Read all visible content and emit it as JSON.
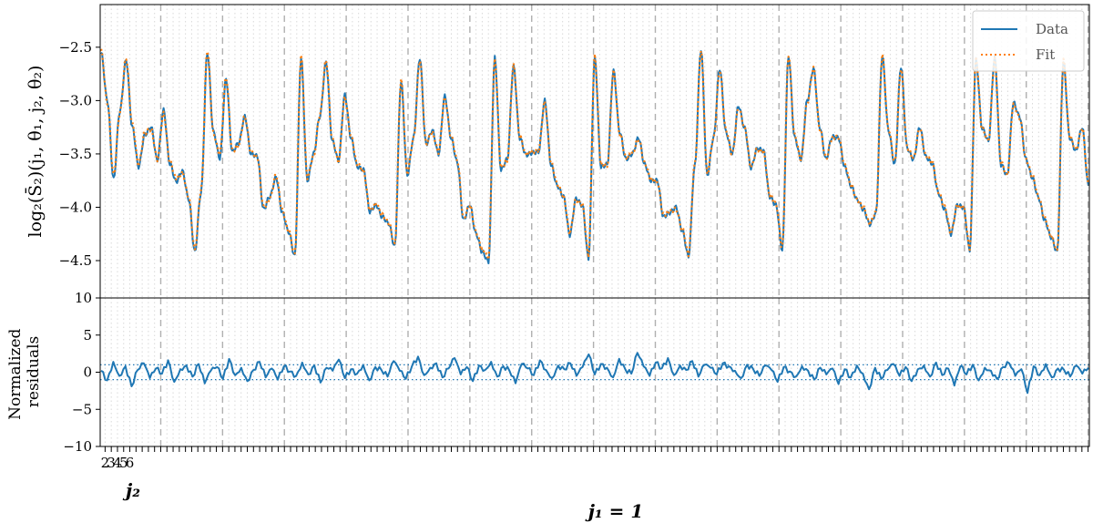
{
  "chart_data": [
    {
      "type": "line",
      "panel": "top",
      "ylabel": "log₂(S̄₂)(j₁, θ₁, j₂, θ₂)",
      "ylim": [
        -4.85,
        -2.1
      ],
      "yticks": [
        -2.5,
        -3.0,
        -3.5,
        -4.0,
        -4.5
      ],
      "ytick_labels": [
        "−2.5",
        "−3.0",
        "−3.5",
        "−4.0",
        "−4.5"
      ],
      "grid": "vertical dotted minor lines, dashed major lines",
      "legend_position": "top-right",
      "series": [
        {
          "name": "Data",
          "color": "#1f77b4",
          "style": "solid",
          "x_range": [
            0,
            159
          ],
          "samples": [
            -2.55,
            -3.0,
            -3.74,
            -3.1,
            -2.62,
            -3.25,
            -3.62,
            -3.32,
            -3.25,
            -3.56,
            -3.09,
            -3.59,
            -3.76,
            -3.66,
            -3.92,
            -4.42,
            -3.86,
            -2.55,
            -3.3,
            -3.54,
            -2.8,
            -3.48,
            -3.4,
            -3.15,
            -3.5,
            -3.52,
            -4.02,
            -3.9,
            -3.72,
            -4.05,
            -4.23,
            -4.46,
            -2.6,
            -3.75,
            -3.5,
            -3.15,
            -2.64,
            -3.38,
            -3.56,
            -2.95,
            -3.35,
            -3.62,
            -3.65,
            -4.04,
            -3.98,
            -4.09,
            -4.15,
            -4.37,
            -2.82,
            -3.7,
            -3.35,
            -2.6,
            -3.41,
            -3.28,
            -3.5,
            -2.96,
            -3.35,
            -3.58,
            -4.12,
            -3.98,
            -4.25,
            -4.42,
            -4.51,
            -2.6,
            -3.65,
            -3.55,
            -2.68,
            -3.35,
            -3.51,
            -3.49,
            -3.48,
            -3.0,
            -3.6,
            -3.8,
            -3.9,
            -4.26,
            -3.92,
            -3.98,
            -4.48,
            -2.6,
            -3.62,
            -3.6,
            -2.72,
            -3.3,
            -3.55,
            -3.5,
            -3.35,
            -3.6,
            -3.75,
            -3.75,
            -4.09,
            -4.05,
            -4.0,
            -4.22,
            -4.46,
            -3.62,
            -2.52,
            -3.7,
            -3.35,
            -2.7,
            -3.3,
            -3.5,
            -3.05,
            -3.26,
            -3.63,
            -3.45,
            -3.47,
            -3.9,
            -3.98,
            -4.4,
            -2.58,
            -3.35,
            -3.55,
            -3.0,
            -2.7,
            -3.25,
            -3.55,
            -3.34,
            -3.35,
            -3.62,
            -3.8,
            -3.93,
            -4.02,
            -4.16,
            -4.06,
            -2.58,
            -3.28,
            -3.6,
            -2.68,
            -3.45,
            -3.55,
            -3.25,
            -3.53,
            -3.59,
            -3.87,
            -4.02,
            -4.25,
            -3.98,
            -4.0,
            -4.4,
            -2.62,
            -3.26,
            -3.38,
            -2.6,
            -3.6,
            -3.7,
            -3.02,
            -3.15,
            -3.55,
            -3.72,
            -3.91,
            -4.12,
            -4.28,
            -4.42,
            -2.64,
            -3.35,
            -3.47,
            -3.25,
            -3.8
          ]
        },
        {
          "name": "Fit",
          "color": "#ff7f0e",
          "style": "dotted",
          "x_range": [
            0,
            159
          ],
          "samples": [
            -2.53,
            -3.02,
            -3.7,
            -3.12,
            -2.6,
            -3.22,
            -3.6,
            -3.3,
            -3.27,
            -3.55,
            -3.12,
            -3.57,
            -3.73,
            -3.68,
            -3.9,
            -4.4,
            -3.84,
            -2.52,
            -3.32,
            -3.5,
            -2.78,
            -3.47,
            -3.42,
            -3.15,
            -3.48,
            -3.53,
            -4.0,
            -3.92,
            -3.7,
            -4.03,
            -4.22,
            -4.44,
            -2.58,
            -3.72,
            -3.52,
            -3.14,
            -2.62,
            -3.36,
            -3.57,
            -2.97,
            -3.33,
            -3.6,
            -3.66,
            -4.02,
            -3.97,
            -4.07,
            -4.14,
            -4.35,
            -2.8,
            -3.68,
            -3.36,
            -2.62,
            -3.4,
            -3.3,
            -3.48,
            -2.98,
            -3.33,
            -3.56,
            -4.1,
            -3.98,
            -4.23,
            -4.4,
            -4.47,
            -2.62,
            -3.63,
            -3.56,
            -2.67,
            -3.34,
            -3.5,
            -3.48,
            -3.47,
            -3.02,
            -3.58,
            -3.78,
            -3.9,
            -4.24,
            -3.93,
            -3.97,
            -4.45,
            -2.58,
            -3.6,
            -3.61,
            -2.73,
            -3.31,
            -3.54,
            -3.49,
            -3.36,
            -3.59,
            -3.74,
            -3.76,
            -4.07,
            -4.04,
            -4.02,
            -4.2,
            -4.44,
            -3.6,
            -2.53,
            -3.68,
            -3.36,
            -2.72,
            -3.28,
            -3.5,
            -3.07,
            -3.25,
            -3.62,
            -3.46,
            -3.48,
            -3.88,
            -3.97,
            -4.38,
            -2.57,
            -3.33,
            -3.55,
            -3.02,
            -2.7,
            -3.26,
            -3.54,
            -3.35,
            -3.34,
            -3.6,
            -3.79,
            -3.93,
            -4.0,
            -4.15,
            -4.05,
            -2.57,
            -3.27,
            -3.58,
            -2.7,
            -3.44,
            -3.54,
            -3.26,
            -3.52,
            -3.58,
            -3.86,
            -4.0,
            -4.24,
            -3.99,
            -4.0,
            -4.38,
            -2.6,
            -3.27,
            -3.37,
            -2.62,
            -3.58,
            -3.7,
            -3.04,
            -3.16,
            -3.55,
            -3.7,
            -3.9,
            -4.1,
            -4.27,
            -4.4,
            -2.62,
            -3.34,
            -3.46,
            -3.26,
            -3.78
          ]
        }
      ]
    },
    {
      "type": "line",
      "panel": "bottom",
      "ylabel_lines": [
        "Normalized",
        "residuals"
      ],
      "ylim": [
        -10,
        10
      ],
      "yticks": [
        10,
        5,
        0,
        -5,
        -10
      ],
      "ytick_labels": [
        "10",
        "5",
        "0",
        "−5",
        "−10"
      ],
      "reference_lines": [
        1,
        -1
      ],
      "series": [
        {
          "color": "#1f77b4",
          "style": "solid",
          "samples": [
            0.2,
            -1.1,
            1.4,
            -0.5,
            0.8,
            -1.9,
            0.3,
            1.2,
            -0.8,
            0.5,
            -0.2,
            1.6,
            -1.3,
            0.4,
            0.9,
            -0.6,
            1.1,
            -1.5,
            0.2,
            0.7,
            -0.9,
            1.8,
            -0.4,
            0.6,
            -1.2,
            0.3,
            1.4,
            -0.7,
            0.5,
            -1.0,
            0.8,
            0.1,
            -0.5,
            1.3,
            -0.3,
            0.9,
            -1.4,
            0.6,
            0.2,
            1.7,
            -0.8,
            0.4,
            -0.2,
            1.0,
            -1.1,
            0.7,
            0.3,
            -0.6,
            1.5,
            0.2,
            -0.9,
            0.8,
            2.1,
            -0.4,
            0.6,
            1.2,
            -0.7,
            0.5,
            1.9,
            -0.3,
            0.7,
            -1.2,
            0.9,
            0.3,
            1.4,
            -0.6,
            0.8,
            0.2,
            -1.5,
            1.1,
            0.5,
            -0.4,
            1.6,
            0.3,
            -0.8,
            0.9,
            0.4,
            1.2,
            -0.5,
            0.7,
            2.4,
            -0.3,
            1.1,
            0.6,
            -0.7,
            1.8,
            0.4,
            -0.2,
            2.6,
            0.8,
            -0.5,
            1.3,
            0.5,
            1.9,
            -0.4,
            0.9,
            0.3,
            1.5,
            -0.6,
            1.0,
            0.6,
            -0.3,
            1.2,
            0.8,
            0.2,
            -0.8,
            1.0,
            0.4,
            -0.5,
            0.9,
            0.3,
            -1.3,
            0.7,
            0.1,
            -0.6,
            0.8,
            0.2,
            -1.0,
            0.6,
            -0.3,
            0.5,
            -1.6,
            0.4,
            -0.7,
            0.9,
            -0.2,
            -2.3,
            0.6,
            -0.9,
            0.3,
            1.1,
            -0.5,
            0.7,
            -1.2,
            0.4,
            0.9,
            -0.6,
            1.3,
            -0.4,
            0.5,
            -1.8,
            0.8,
            -0.3,
            1.0,
            -1.1,
            0.6,
            0.2,
            -0.9,
            0.7,
            1.2,
            -0.5,
            0.4,
            -2.8,
            0.8,
            -0.4,
            1.1,
            -0.7,
            0.5,
            0.3,
            -0.6,
            0.9,
            -0.2,
            0.6
          ]
        }
      ]
    }
  ],
  "xaxis": {
    "n_dense_ticks": 160,
    "minor_tick_labels": [
      "2",
      "3",
      "4",
      "5",
      "6"
    ],
    "minor_label": "j₂",
    "major_label": "j₁ = 1"
  },
  "legend": {
    "entries": [
      "Data",
      "Fit"
    ]
  }
}
